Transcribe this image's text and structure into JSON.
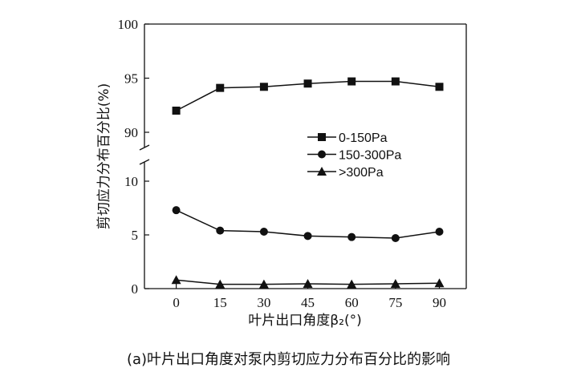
{
  "caption": "(a)叶片出口角度对泵内剪切应力分布百分比的影响",
  "chart_data": {
    "type": "line",
    "x": [
      0,
      15,
      30,
      45,
      60,
      75,
      90
    ],
    "x_ticks": [
      "0",
      "15",
      "30",
      "45",
      "60",
      "75",
      "90"
    ],
    "xlabel": "叶片出口角度β₂(°)",
    "ylabel": "剪切应力分布百分比(%)",
    "y_axis_break": true,
    "ylim_lower": [
      0,
      10
    ],
    "ylim_upper": [
      90,
      100
    ],
    "y_ticks_lower": [
      "0",
      "5",
      "10"
    ],
    "y_ticks_upper": [
      "90",
      "95",
      "100"
    ],
    "legend_position": "right-middle",
    "grid": false,
    "series": [
      {
        "name": "0-150Pa",
        "marker": "square",
        "values": [
          92.0,
          94.1,
          94.2,
          94.5,
          94.7,
          94.7,
          94.2
        ]
      },
      {
        "name": "150-300Pa",
        "marker": "circle",
        "values": [
          7.3,
          5.4,
          5.3,
          4.9,
          4.8,
          4.7,
          5.3
        ]
      },
      {
        "name": ">300Pa",
        "marker": "triangle",
        "values": [
          0.8,
          0.4,
          0.4,
          0.45,
          0.4,
          0.45,
          0.5
        ]
      }
    ]
  }
}
